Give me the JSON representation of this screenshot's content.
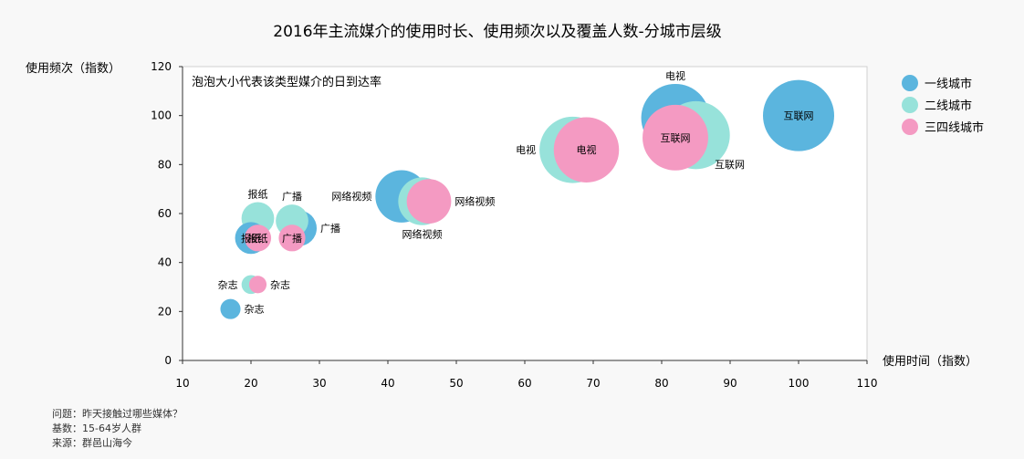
{
  "chart_data": {
    "type": "bubble",
    "title": "2016年主流媒介的使用时长、使用频次以及覆盖人数-分城市层级",
    "subtitle": "泡泡大小代表该类型媒介的日到达率",
    "xlabel": "使用时间（指数）",
    "ylabel": "使用频次（指数）",
    "xlim": [
      10,
      110
    ],
    "ylim": [
      0,
      120
    ],
    "xticks": [
      10,
      20,
      30,
      40,
      50,
      60,
      70,
      80,
      90,
      100,
      110
    ],
    "yticks": [
      0,
      20,
      40,
      60,
      80,
      100,
      120
    ],
    "legend_position": "right",
    "grid": false,
    "series": [
      {
        "name": "一线城市",
        "color": "#5bb5de",
        "points": [
          {
            "label": "互联网",
            "x": 100,
            "y": 100,
            "reach": 1.0
          },
          {
            "label": "电视",
            "x": 82,
            "y": 99,
            "reach": 0.92
          },
          {
            "label": "网络视频",
            "x": 42,
            "y": 67,
            "reach": 0.54
          },
          {
            "label": "广播",
            "x": 27,
            "y": 54,
            "reach": 0.25
          },
          {
            "label": "报纸",
            "x": 20,
            "y": 50,
            "reach": 0.2
          },
          {
            "label": "杂志",
            "x": 17,
            "y": 21,
            "reach": 0.08
          }
        ]
      },
      {
        "name": "二线城市",
        "color": "#97e2da",
        "points": [
          {
            "label": "互联网",
            "x": 85,
            "y": 92,
            "reach": 0.91
          },
          {
            "label": "电视",
            "x": 67,
            "y": 86,
            "reach": 0.87
          },
          {
            "label": "网络视频",
            "x": 45,
            "y": 65,
            "reach": 0.45
          },
          {
            "label": "广播",
            "x": 26,
            "y": 57,
            "reach": 0.21
          },
          {
            "label": "报纸",
            "x": 21,
            "y": 58,
            "reach": 0.21
          },
          {
            "label": "杂志",
            "x": 20,
            "y": 31,
            "reach": 0.07
          }
        ]
      },
      {
        "name": "三四线城市",
        "color": "#f49ac2",
        "points": [
          {
            "label": "互联网",
            "x": 82,
            "y": 91,
            "reach": 0.85
          },
          {
            "label": "电视",
            "x": 69,
            "y": 86,
            "reach": 0.84
          },
          {
            "label": "网络视频",
            "x": 46,
            "y": 65,
            "reach": 0.39
          },
          {
            "label": "广播",
            "x": 26,
            "y": 50,
            "reach": 0.14
          },
          {
            "label": "报纸",
            "x": 21,
            "y": 50,
            "reach": 0.14
          },
          {
            "label": "杂志",
            "x": 21,
            "y": 31,
            "reach": 0.06
          }
        ]
      }
    ],
    "notes": [
      "问题：昨天接触过哪些媒体？",
      "基数：15-64岁人群",
      "来源：群邑山海今"
    ]
  }
}
